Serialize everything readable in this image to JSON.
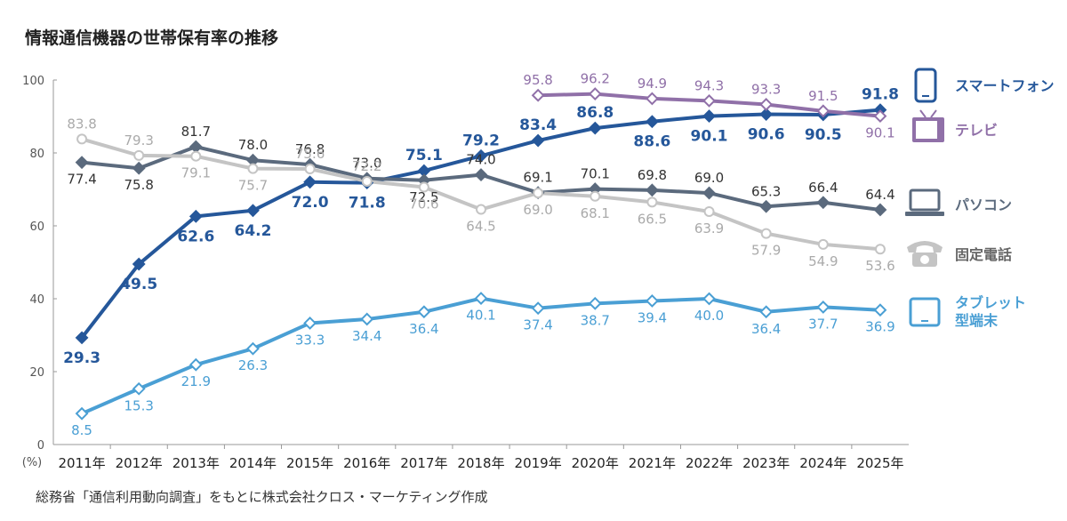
{
  "chart_data": {
    "type": "line",
    "title": "情報通信機器の世帯保有率の推移",
    "unit_label": "(%)",
    "source": "総務省「通信利用動向調査」をもとに株式会社クロス・マーケティング作成",
    "ylim": [
      0,
      100
    ],
    "yticks": [
      "0",
      "20",
      "40",
      "60",
      "80",
      "100"
    ],
    "categories": [
      "2011年",
      "2012年",
      "2013年",
      "2014年",
      "2015年",
      "2016年",
      "2017年",
      "2018年",
      "2019年",
      "2020年",
      "2021年",
      "2022年",
      "2023年",
      "2024年",
      "2025年"
    ],
    "legend_position": "right",
    "series": [
      {
        "name": "スマートフォン",
        "color": "#25579a",
        "icon": "smartphone-icon",
        "marker": "diamond-filled",
        "values": [
          29.3,
          49.5,
          62.6,
          64.2,
          72.0,
          71.8,
          75.1,
          79.2,
          83.4,
          86.8,
          88.6,
          90.1,
          90.6,
          90.5,
          91.8
        ],
        "labels": [
          "29.3",
          "49.5",
          "62.6",
          "64.2",
          "72.0",
          "71.8",
          "75.1",
          "79.2",
          "83.4",
          "86.8",
          "88.6",
          "90.1",
          "90.6",
          "90.5",
          "91.8"
        ]
      },
      {
        "name": "テレビ",
        "color": "#9070a8",
        "icon": "tv-icon",
        "marker": "diamond-open",
        "values": [
          null,
          null,
          null,
          null,
          null,
          null,
          null,
          null,
          95.8,
          96.2,
          94.9,
          94.3,
          93.3,
          91.5,
          90.1
        ],
        "labels": [
          "",
          "",
          "",
          "",
          "",
          "",
          "",
          "",
          "95.8",
          "96.2",
          "94.9",
          "94.3",
          "93.3",
          "91.5",
          "90.1"
        ]
      },
      {
        "name": "パソコン",
        "color": "#5b6a7d",
        "icon": "laptop-icon",
        "marker": "diamond-filled",
        "values": [
          77.4,
          75.8,
          81.7,
          78.0,
          76.8,
          73.0,
          72.5,
          74.0,
          69.1,
          70.1,
          69.8,
          69.0,
          65.3,
          66.4,
          64.4
        ],
        "labels": [
          "77.4",
          "75.8",
          "81.7",
          "78.0",
          "76.8",
          "73.0",
          "72.5",
          "74.0",
          "69.1",
          "70.1",
          "69.8",
          "69.0",
          "65.3",
          "66.4",
          "64.4"
        ]
      },
      {
        "name": "固定電話",
        "color": "#c4c4c4",
        "icon": "telephone-icon",
        "marker": "circle-open",
        "values": [
          83.8,
          79.3,
          79.1,
          75.7,
          75.6,
          72.2,
          70.6,
          64.5,
          69.0,
          68.1,
          66.5,
          63.9,
          57.9,
          54.9,
          53.6
        ],
        "labels": [
          "83.8",
          "79.3",
          "79.1",
          "75.7",
          "75.6",
          "72.2",
          "70.6",
          "64.5",
          "69.0",
          "68.1",
          "66.5",
          "63.9",
          "57.9",
          "54.9",
          "53.6"
        ]
      },
      {
        "name": "タブレット型端末",
        "legend_lines": [
          "タブレット",
          "型端末"
        ],
        "color": "#4a9fd4",
        "icon": "tablet-icon",
        "marker": "diamond-open",
        "values": [
          8.5,
          15.3,
          21.9,
          26.3,
          33.3,
          34.4,
          36.4,
          40.1,
          37.4,
          38.7,
          39.4,
          40.0,
          36.4,
          37.7,
          36.9
        ],
        "labels": [
          "8.5",
          "15.3",
          "21.9",
          "26.3",
          "33.3",
          "34.4",
          "36.4",
          "40.1",
          "37.4",
          "38.7",
          "39.4",
          "40.0",
          "36.4",
          "37.7",
          "36.9"
        ]
      }
    ]
  }
}
